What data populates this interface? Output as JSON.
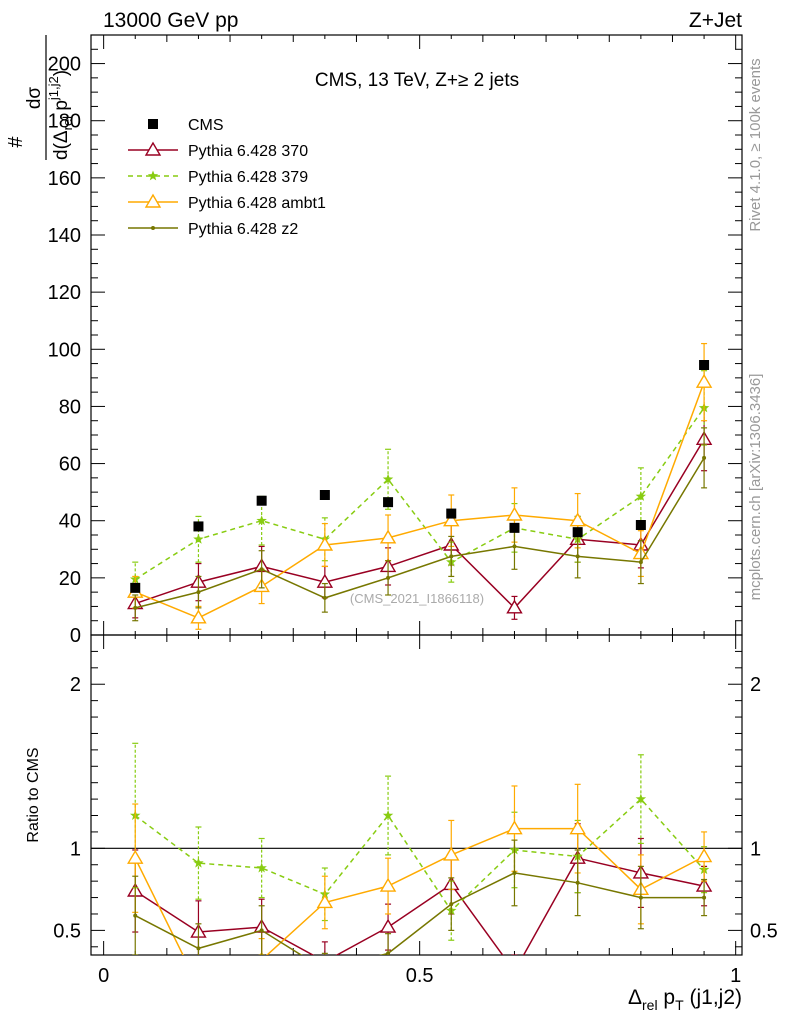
{
  "header": {
    "left": "13000 GeV pp",
    "right": "Z+Jet"
  },
  "side_labels": {
    "rivet": "Rivet 4.1.0, ≥ 100k events",
    "mcplots": "mcplots.cern.ch [arXiv:1306.3436]"
  },
  "watermark": "(CMS_2021_I1866118)",
  "chart_data": {
    "type": "line",
    "title": "CMS, 13 TeV, Z+≥ 2 jets",
    "ylabel_parts": {
      "hash": "#",
      "num": "dσ",
      "den_d": "d(",
      "den_delta": "Δ",
      "den_rel": "rel",
      "den_p": " p",
      "den_sup": "j1,j2",
      "den_close": ")"
    },
    "xlabel_parts": {
      "delta": "Δ",
      "rel": "rel",
      "p": " p",
      "T": "T",
      "rest": " (j1,j2)"
    },
    "xlim": [
      -0.02,
      1.01
    ],
    "ylim": [
      0,
      210
    ],
    "x_ticks": [
      0,
      0.5,
      1
    ],
    "x_tick_labels": [
      "0",
      "0.5",
      "1"
    ],
    "y_ticks": [
      0,
      20,
      40,
      60,
      80,
      100,
      120,
      140,
      160,
      180,
      200
    ],
    "y_tick_labels": [
      "0",
      "20",
      "40",
      "60",
      "80",
      "100",
      "120",
      "140",
      "160",
      "180",
      "200"
    ],
    "x": [
      0.05,
      0.15,
      0.25,
      0.35,
      0.45,
      0.55,
      0.65,
      0.75,
      0.85,
      0.95
    ],
    "series": [
      {
        "name": "CMS",
        "color": "#000000",
        "marker": "square",
        "line": "none",
        "values": [
          16.5,
          38,
          47,
          49,
          46.5,
          42.5,
          37.5,
          36,
          38.5,
          94.5
        ]
      },
      {
        "name": "Pythia 6.428 370",
        "color": "#990022",
        "marker": "triangle-open",
        "line": "solid",
        "values": [
          11,
          18.5,
          24,
          18.5,
          24,
          31.5,
          9.5,
          33.5,
          31.5,
          68.5
        ],
        "errors": [
          5,
          6.5,
          7,
          5.5,
          6.5,
          7,
          4,
          8,
          8,
          11
        ]
      },
      {
        "name": "Pythia 6.428 379",
        "color": "#88cc11",
        "marker": "star",
        "line": "dashed",
        "values": [
          19.5,
          33.5,
          40,
          33.5,
          54.5,
          25.5,
          37.5,
          33.5,
          48.5,
          79.5
        ],
        "errors": [
          6,
          8,
          8.5,
          7.5,
          10.5,
          7,
          8.5,
          8,
          10,
          13
        ]
      },
      {
        "name": "Pythia 6.428 ambt1",
        "color": "#ffaa00",
        "marker": "triangle-open",
        "line": "solid",
        "values": [
          15,
          6,
          17,
          31.5,
          34,
          40,
          42,
          40,
          28.5,
          88.5
        ],
        "errors": [
          5.5,
          4,
          6,
          7.5,
          8,
          9,
          9.5,
          9.5,
          8,
          13.5
        ]
      },
      {
        "name": "Pythia 6.428 z2",
        "color": "#777700",
        "marker": "dot",
        "line": "solid",
        "values": [
          9.5,
          15,
          23,
          13,
          20,
          27.5,
          31,
          27.5,
          25.5,
          62
        ],
        "errors": [
          4.5,
          5.5,
          6.5,
          5,
          6,
          7,
          8,
          7.5,
          7.5,
          10.5
        ]
      }
    ],
    "ratio": {
      "ylabel": "Ratio to CMS",
      "ylim": [
        0.35,
        2.3
      ],
      "y_tick_labels_shown": [
        "0.5",
        "1",
        "2"
      ],
      "y_tick_label_values": [
        0.5,
        1,
        2
      ],
      "series": [
        {
          "name": "Pythia 6.428 370",
          "values": [
            0.74,
            0.49,
            0.52,
            0.31,
            0.52,
            0.78,
            0.25,
            0.94,
            0.85,
            0.77
          ],
          "errors": [
            0.25,
            0.19,
            0.17,
            0.12,
            0.14,
            0.18,
            0.1,
            0.21,
            0.21,
            0.12
          ]
        },
        {
          "name": "Pythia 6.428 379",
          "values": [
            1.2,
            0.91,
            0.88,
            0.72,
            1.2,
            0.62,
            0.99,
            0.95,
            1.3,
            0.87
          ],
          "errors": [
            0.44,
            0.22,
            0.18,
            0.16,
            0.24,
            0.18,
            0.23,
            0.22,
            0.27,
            0.14
          ]
        },
        {
          "name": "Pythia 6.428 ambt1",
          "values": [
            0.94,
            0.16,
            0.32,
            0.67,
            0.77,
            0.96,
            1.12,
            1.12,
            0.75,
            0.95
          ],
          "errors": [
            0.33,
            0.1,
            0.13,
            0.16,
            0.17,
            0.21,
            0.26,
            0.27,
            0.21,
            0.15
          ]
        },
        {
          "name": "Pythia 6.428 z2",
          "values": [
            0.59,
            0.39,
            0.5,
            0.26,
            0.36,
            0.66,
            0.85,
            0.79,
            0.7,
            0.7
          ],
          "errors": [
            0.24,
            0.15,
            0.15,
            0.1,
            0.12,
            0.16,
            0.2,
            0.2,
            0.19,
            0.11
          ]
        }
      ]
    }
  }
}
